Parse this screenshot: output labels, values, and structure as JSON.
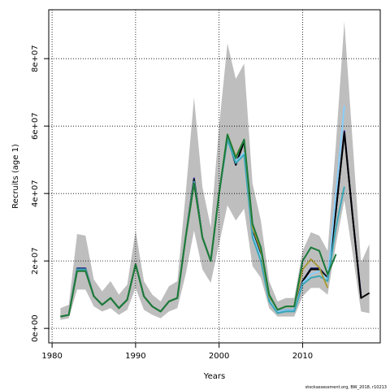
{
  "chart_data": {
    "type": "line",
    "xlabel": "Years",
    "ylabel": "Recruits (age 1)",
    "footnote": "stockassessment.org, BW_2018, r10213",
    "x": [
      1981,
      1982,
      1983,
      1984,
      1985,
      1986,
      1987,
      1988,
      1989,
      1990,
      1991,
      1992,
      1993,
      1994,
      1995,
      1996,
      1997,
      1998,
      1999,
      2000,
      2001,
      2002,
      2003,
      2004,
      2005,
      2006,
      2007,
      2008,
      2009,
      2010,
      2011,
      2012,
      2013,
      2014,
      2015,
      2016,
      2017,
      2018
    ],
    "xlim": [
      1979.6,
      2019.3
    ],
    "xticks": [
      1980,
      1990,
      2000,
      2010
    ],
    "ylim": [
      -4300000.0,
      94500000.0
    ],
    "yticks": [
      {
        "value": 0,
        "label": "0e+00"
      },
      {
        "value": 20000000,
        "label": "2e+07"
      },
      {
        "value": 40000000,
        "label": "4e+07"
      },
      {
        "value": 60000000,
        "label": "6e+07"
      },
      {
        "value": 80000000,
        "label": "8e+07"
      }
    ],
    "grid": true,
    "band": {
      "color": "#bebebe",
      "lower": [
        2500000.0,
        3000000.0,
        11500000.0,
        11500000.0,
        6500000.0,
        5000000.0,
        6000000.0,
        4000000.0,
        5500000.0,
        12000000.0,
        5500000.0,
        4000000.0,
        3000000.0,
        5000000.0,
        6000000.0,
        16000000.0,
        29000000.0,
        17500000.0,
        13500000.0,
        25000000.0,
        36500000.0,
        32000000.0,
        35500000.0,
        18500000.0,
        15000000.0,
        6000000.0,
        3500000.0,
        3500000.0,
        3500000.0,
        9500000.0,
        12000000.0,
        12000000.0,
        10000000.0,
        25000000.0,
        38000000.0,
        22000000.0,
        5000000.0,
        4500000.0
      ],
      "upper": [
        6000000.0,
        7000000.0,
        28000000.0,
        27500000.0,
        14500000.0,
        11000000.0,
        14000000.0,
        10000000.0,
        13000000.0,
        29000000.0,
        14000000.0,
        10000000.0,
        8000000.0,
        12500000.0,
        14000000.0,
        40000000.0,
        68500000.0,
        42000000.0,
        30000000.0,
        60000000.0,
        84500000.0,
        74000000.0,
        78500000.0,
        43000000.0,
        32000000.0,
        14000000.0,
        8000000.0,
        9000000.0,
        9000000.0,
        23000000.0,
        28500000.0,
        27500000.0,
        23000000.0,
        55000000.0,
        91000000.0,
        55000000.0,
        19500000.0,
        25000000.0
      ]
    },
    "series": [
      {
        "color": "#1c1c7a",
        "values": [
          3500000.0,
          4000000.0,
          17800000.0,
          17800000.0,
          9500000.0,
          7000000.0,
          9000000.0,
          6000000.0,
          8500000.0,
          19000000.0,
          9500000.0,
          6500000.0,
          5000000.0,
          8000000.0,
          9000000.0,
          27000000.0,
          44500000.0,
          27000000.0,
          20000000.0,
          40000000.0,
          57000000.0,
          48500000.0,
          55500000.0,
          29000000.0,
          22000000.0,
          9000000.0,
          5000000.0,
          5500000.0,
          5500000.0,
          14000000.0,
          17800000.0,
          17800000.0,
          15000000.0,
          35000000.0,
          58500000.0,
          33000000.0,
          9500000.0,
          null
        ]
      },
      {
        "color": "#000000",
        "values": [
          3500000.0,
          4000000.0,
          17500000.0,
          17500000.0,
          9500000.0,
          7000000.0,
          9000000.0,
          6000000.0,
          8500000.0,
          19000000.0,
          9500000.0,
          6500000.0,
          5000000.0,
          8000000.0,
          9000000.0,
          27000000.0,
          44000000.0,
          27000000.0,
          20000000.0,
          40000000.0,
          57000000.0,
          48500000.0,
          55500000.0,
          29000000.0,
          22000000.0,
          9000000.0,
          5000000.0,
          5500000.0,
          5500000.0,
          14000000.0,
          17500000.0,
          17500000.0,
          15000000.0,
          35000000.0,
          58000000.0,
          33000000.0,
          9000000.0,
          10500000.0
        ]
      },
      {
        "color": "#87cefa",
        "values": [
          3500000.0,
          4000000.0,
          17500000.0,
          17500000.0,
          9500000.0,
          7000000.0,
          9000000.0,
          6000000.0,
          8500000.0,
          19000000.0,
          9500000.0,
          6500000.0,
          5000000.0,
          8000000.0,
          9000000.0,
          27000000.0,
          43500000.0,
          27000000.0,
          20000000.0,
          40000000.0,
          56500000.0,
          49500000.0,
          52000000.0,
          28000000.0,
          21000000.0,
          8500000.0,
          5000000.0,
          5500000.0,
          5500000.0,
          13500000.0,
          16000000.0,
          17000000.0,
          14500000.0,
          40000000.0,
          66000000.0,
          null,
          null,
          null
        ]
      },
      {
        "color": "#3aa8b8",
        "values": [
          3500000.0,
          4000000.0,
          17500000.0,
          17500000.0,
          9500000.0,
          7000000.0,
          9000000.0,
          6000000.0,
          8500000.0,
          19000000.0,
          9500000.0,
          6500000.0,
          5000000.0,
          8000000.0,
          9000000.0,
          27000000.0,
          43500000.0,
          27000000.0,
          20000000.0,
          40000000.0,
          56000000.0,
          49000000.0,
          51500000.0,
          27000000.0,
          20000000.0,
          8000000.0,
          4500000.0,
          5000000.0,
          5000000.0,
          13000000.0,
          15000000.0,
          15500000.0,
          14000000.0,
          30000000.0,
          42000000.0,
          null,
          null,
          null
        ]
      },
      {
        "color": "#a89a3a",
        "values": [
          3500000.0,
          4000000.0,
          17000000.0,
          17000000.0,
          9500000.0,
          7000000.0,
          9000000.0,
          6000000.0,
          8500000.0,
          19000000.0,
          9500000.0,
          6500000.0,
          5000000.0,
          8000000.0,
          9000000.0,
          27000000.0,
          43000000.0,
          27000000.0,
          20000000.0,
          40000000.0,
          57500000.0,
          51000000.0,
          56000000.0,
          30000000.0,
          23000000.0,
          9500000.0,
          5500000.0,
          6500000.0,
          6500000.0,
          17500000.0,
          20500000.0,
          18000000.0,
          12000000.0,
          null,
          null,
          null,
          null,
          null
        ]
      },
      {
        "color": "#1a7a3a",
        "values": [
          3500000.0,
          4000000.0,
          17000000.0,
          17000000.0,
          9500000.0,
          7000000.0,
          9000000.0,
          6000000.0,
          8500000.0,
          19000000.0,
          9500000.0,
          6500000.0,
          5000000.0,
          8000000.0,
          9000000.0,
          27000000.0,
          43000000.0,
          27000000.0,
          20000000.0,
          40000000.0,
          57500000.0,
          50500000.0,
          56000000.0,
          31000000.0,
          24000000.0,
          10000000.0,
          5500000.0,
          6500000.0,
          6500000.0,
          20000000.0,
          24000000.0,
          23000000.0,
          16000000.0,
          22000000.0,
          null,
          null,
          null,
          null
        ]
      }
    ]
  }
}
